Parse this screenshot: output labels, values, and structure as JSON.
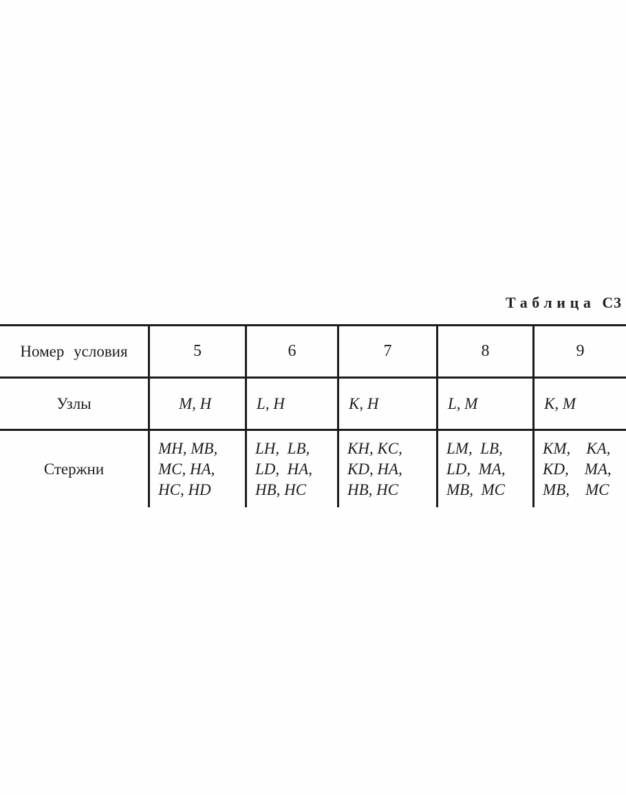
{
  "title": {
    "word": "Таблица",
    "number": "С3"
  },
  "table": {
    "row_labels": {
      "number": "Номер условия",
      "nodes": "Узлы",
      "rods": "Стержни"
    },
    "columns": [
      {
        "number": "5",
        "nodes": "M, H",
        "rods": [
          "MH, MB,",
          "MC, HA,",
          "HC, HD"
        ]
      },
      {
        "number": "6",
        "nodes": "L, H",
        "rods": [
          "LH,  LB,",
          "LD,  HA,",
          "HB, HC"
        ]
      },
      {
        "number": "7",
        "nodes": "K, H",
        "rods": [
          "KH, KC,",
          "KD, HA,",
          "HB, HC"
        ]
      },
      {
        "number": "8",
        "nodes": "L, M",
        "rods": [
          "LM,  LB,",
          "LD,  MA,",
          "MB,  MC"
        ]
      },
      {
        "number": "9",
        "nodes": "K, M",
        "rods": [
          "KM,    KA,",
          "KD,    MA,",
          "MB,    MC"
        ]
      }
    ]
  }
}
